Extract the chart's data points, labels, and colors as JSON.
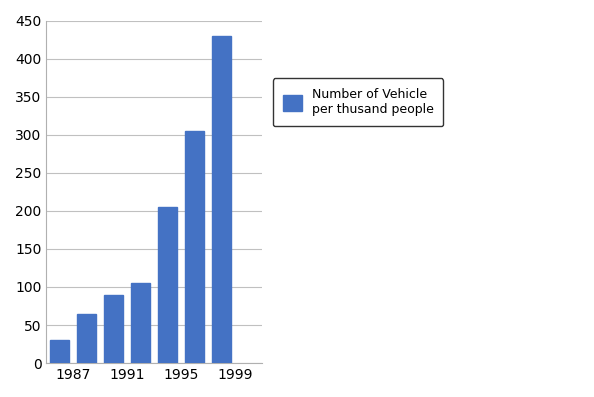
{
  "bar_positions": [
    0,
    1,
    2,
    3,
    4,
    5,
    6,
    7
  ],
  "values": [
    30,
    65,
    90,
    105,
    205,
    305,
    430,
    0
  ],
  "bar_color": "#4472C4",
  "xtick_labels": [
    "1987",
    "1991",
    "1995",
    "1999"
  ],
  "xtick_positions": [
    0.5,
    2.5,
    4.5,
    6.5
  ],
  "ylim": [
    0,
    450
  ],
  "yticks": [
    0,
    50,
    100,
    150,
    200,
    250,
    300,
    350,
    400,
    450
  ],
  "legend_label": "Number of Vehicle\nper thusand people",
  "background_color": "#ffffff",
  "bar_width": 0.7,
  "grid_color": "#c0c0c0"
}
